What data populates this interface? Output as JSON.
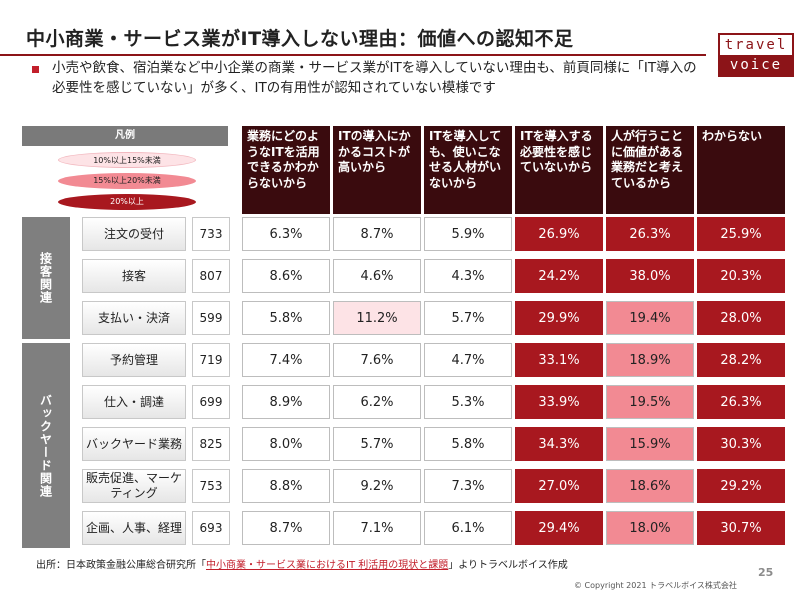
{
  "title": "中小商業・サービス業がIT導入しない理由：価値への認知不足",
  "bullet": "小売や飲食、宿泊業など中小企業の商業・サービス業がITを導入していない理由も、前頁同様に「IT導入の必要性を感じていない」が多く、ITの有用性が認知されていない模様です",
  "logo": {
    "top": "travel",
    "bottom": "voice"
  },
  "legend": {
    "title": "凡例",
    "items": [
      "10%以上15%未満",
      "15%以上20%未満",
      "20%以上"
    ]
  },
  "colors": {
    "accent": "#8c1418",
    "level1": "#fde3e6",
    "level2": "#f28a93",
    "level3": "#a8181f",
    "header": "#3a0b0e"
  },
  "columns": [
    "業務にどのようなITを活用できるかわからないから",
    "ITの導入にかかるコストが高いから",
    "ITを導入しても、使いこなせる人材がいないから",
    "ITを導入する必要性を感じていないから",
    "人が行うことに価値がある業務だと考えているから",
    "わからない"
  ],
  "groups": [
    {
      "label": "接客関連"
    },
    {
      "label": "バックヤード関連"
    }
  ],
  "rows": [
    {
      "category": "注文の受付",
      "n": "733",
      "values": [
        "6.3%",
        "8.7%",
        "5.9%",
        "26.9%",
        "26.3%",
        "25.9%"
      ],
      "levels": [
        0,
        0,
        0,
        3,
        3,
        3
      ]
    },
    {
      "category": "接客",
      "n": "807",
      "values": [
        "8.6%",
        "4.6%",
        "4.3%",
        "24.2%",
        "38.0%",
        "20.3%"
      ],
      "levels": [
        0,
        0,
        0,
        3,
        3,
        3
      ]
    },
    {
      "category": "支払い・決済",
      "n": "599",
      "values": [
        "5.8%",
        "11.2%",
        "5.7%",
        "29.9%",
        "19.4%",
        "28.0%"
      ],
      "levels": [
        0,
        1,
        0,
        3,
        2,
        3
      ]
    },
    {
      "category": "予約管理",
      "n": "719",
      "values": [
        "7.4%",
        "7.6%",
        "4.7%",
        "33.1%",
        "18.9%",
        "28.2%"
      ],
      "levels": [
        0,
        0,
        0,
        3,
        2,
        3
      ]
    },
    {
      "category": "仕入・調達",
      "n": "699",
      "values": [
        "8.9%",
        "6.2%",
        "5.3%",
        "33.9%",
        "19.5%",
        "26.3%"
      ],
      "levels": [
        0,
        0,
        0,
        3,
        2,
        3
      ]
    },
    {
      "category": "バックヤード業務",
      "n": "825",
      "values": [
        "8.0%",
        "5.7%",
        "5.8%",
        "34.3%",
        "15.9%",
        "30.3%"
      ],
      "levels": [
        0,
        0,
        0,
        3,
        2,
        3
      ]
    },
    {
      "category": "販売促進、マーケティング",
      "n": "753",
      "values": [
        "8.8%",
        "9.2%",
        "7.3%",
        "27.0%",
        "18.6%",
        "29.2%"
      ],
      "levels": [
        0,
        0,
        0,
        3,
        2,
        3
      ]
    },
    {
      "category": "企画、人事、経理",
      "n": "693",
      "values": [
        "8.7%",
        "7.1%",
        "6.1%",
        "29.4%",
        "18.0%",
        "30.7%"
      ],
      "levels": [
        0,
        0,
        0,
        3,
        2,
        3
      ]
    }
  ],
  "source": {
    "prefix": "出所：日本政策金融公庫総合研究所「",
    "link": "中小商業・サービス業におけるIT 利活用の現状と課題",
    "suffix": "」よりトラベルボイス作成"
  },
  "page_number": "25",
  "copyright": "© Copyright 2021 トラベルボイス株式会社"
}
